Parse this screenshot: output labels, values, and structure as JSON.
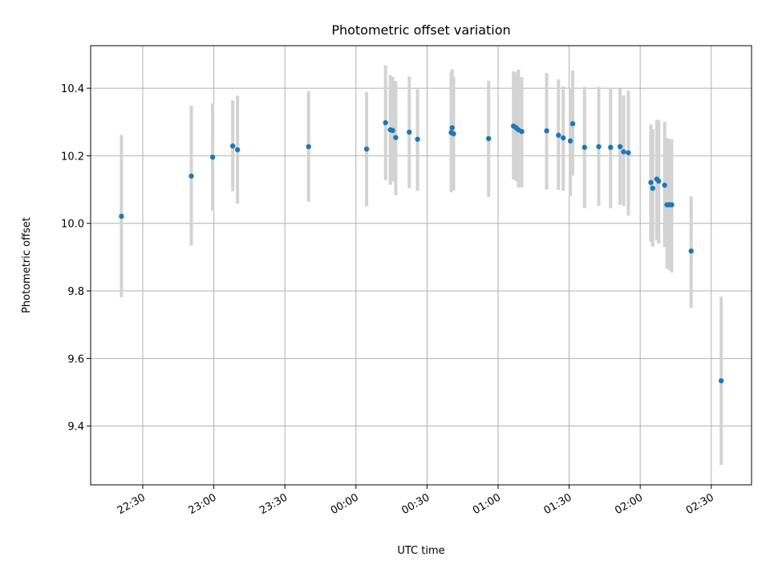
{
  "chart_data": {
    "type": "scatter",
    "title": "Photometric offset variation",
    "xlabel": "UTC time",
    "ylabel": "Photometric offset",
    "x_axis": {
      "unit": "minutes relative to 00:00 UTC",
      "min": -112,
      "max": 167,
      "ticks": [
        {
          "value": -90,
          "label": "22:30"
        },
        {
          "value": -60,
          "label": "23:00"
        },
        {
          "value": -30,
          "label": "23:30"
        },
        {
          "value": 0,
          "label": "00:00"
        },
        {
          "value": 30,
          "label": "00:30"
        },
        {
          "value": 60,
          "label": "01:00"
        },
        {
          "value": 90,
          "label": "01:30"
        },
        {
          "value": 120,
          "label": "02:00"
        },
        {
          "value": 150,
          "label": "02:30"
        }
      ]
    },
    "y_axis": {
      "min": 9.226,
      "max": 10.526,
      "ticks": [
        {
          "value": 9.4,
          "label": "9.4"
        },
        {
          "value": 9.6,
          "label": "9.6"
        },
        {
          "value": 9.8,
          "label": "9.8"
        },
        {
          "value": 10.0,
          "label": "10.0"
        },
        {
          "value": 10.2,
          "label": "10.2"
        },
        {
          "value": 10.4,
          "label": "10.4"
        }
      ]
    },
    "grid": true,
    "marker_color": "#1f77b4",
    "errorbar_color": "#d3d3d3",
    "points": [
      {
        "x": -99.0,
        "y": 10.021,
        "lo": 9.781,
        "hi": 10.262
      },
      {
        "x": -69.5,
        "y": 10.14,
        "lo": 9.934,
        "hi": 10.348
      },
      {
        "x": -60.5,
        "y": 10.196,
        "lo": 10.038,
        "hi": 10.355
      },
      {
        "x": -52.0,
        "y": 10.229,
        "lo": 10.095,
        "hi": 10.364
      },
      {
        "x": -50.0,
        "y": 10.218,
        "lo": 10.058,
        "hi": 10.378
      },
      {
        "x": -20.0,
        "y": 10.227,
        "lo": 10.064,
        "hi": 10.391
      },
      {
        "x": 4.5,
        "y": 10.22,
        "lo": 10.05,
        "hi": 10.388
      },
      {
        "x": 12.5,
        "y": 10.298,
        "lo": 10.128,
        "hi": 10.468
      },
      {
        "x": 14.5,
        "y": 10.277,
        "lo": 10.114,
        "hi": 10.439
      },
      {
        "x": 15.5,
        "y": 10.275,
        "lo": 10.124,
        "hi": 10.434
      },
      {
        "x": 16.8,
        "y": 10.254,
        "lo": 10.083,
        "hi": 10.421
      },
      {
        "x": 22.5,
        "y": 10.27,
        "lo": 10.104,
        "hi": 10.435
      },
      {
        "x": 26.0,
        "y": 10.249,
        "lo": 10.096,
        "hi": 10.397
      },
      {
        "x": 40.2,
        "y": 10.269,
        "lo": 10.092,
        "hi": 10.447
      },
      {
        "x": 40.6,
        "y": 10.283,
        "lo": 10.108,
        "hi": 10.456
      },
      {
        "x": 41.2,
        "y": 10.265,
        "lo": 10.097,
        "hi": 10.434
      },
      {
        "x": 56.0,
        "y": 10.251,
        "lo": 10.078,
        "hi": 10.422
      },
      {
        "x": 66.5,
        "y": 10.288,
        "lo": 10.13,
        "hi": 10.45
      },
      {
        "x": 67.6,
        "y": 10.283,
        "lo": 10.125,
        "hi": 10.447
      },
      {
        "x": 68.6,
        "y": 10.277,
        "lo": 10.106,
        "hi": 10.455
      },
      {
        "x": 70.0,
        "y": 10.272,
        "lo": 10.106,
        "hi": 10.433
      },
      {
        "x": 80.5,
        "y": 10.274,
        "lo": 10.1,
        "hi": 10.445
      },
      {
        "x": 85.5,
        "y": 10.261,
        "lo": 10.099,
        "hi": 10.426
      },
      {
        "x": 87.5,
        "y": 10.253,
        "lo": 10.096,
        "hi": 10.405
      },
      {
        "x": 90.5,
        "y": 10.244,
        "lo": 10.081,
        "hi": 10.401
      },
      {
        "x": 91.5,
        "y": 10.295,
        "lo": 10.141,
        "hi": 10.453
      },
      {
        "x": 96.5,
        "y": 10.225,
        "lo": 10.045,
        "hi": 10.404
      },
      {
        "x": 102.5,
        "y": 10.227,
        "lo": 10.052,
        "hi": 10.404
      },
      {
        "x": 107.5,
        "y": 10.225,
        "lo": 10.045,
        "hi": 10.398
      },
      {
        "x": 111.5,
        "y": 10.227,
        "lo": 10.055,
        "hi": 10.399
      },
      {
        "x": 113.0,
        "y": 10.212,
        "lo": 10.052,
        "hi": 10.379
      },
      {
        "x": 115.0,
        "y": 10.209,
        "lo": 10.023,
        "hi": 10.393
      },
      {
        "x": 124.5,
        "y": 10.121,
        "lo": 9.945,
        "hi": 10.293
      },
      {
        "x": 125.3,
        "y": 10.104,
        "lo": 9.931,
        "hi": 10.279
      },
      {
        "x": 127.0,
        "y": 10.131,
        "lo": 9.95,
        "hi": 10.307
      },
      {
        "x": 127.8,
        "y": 10.125,
        "lo": 9.94,
        "hi": 10.306
      },
      {
        "x": 130.3,
        "y": 10.113,
        "lo": 9.93,
        "hi": 10.301
      },
      {
        "x": 131.3,
        "y": 10.055,
        "lo": 9.866,
        "hi": 10.253
      },
      {
        "x": 132.3,
        "y": 10.055,
        "lo": 9.862,
        "hi": 10.25
      },
      {
        "x": 133.3,
        "y": 10.055,
        "lo": 9.855,
        "hi": 10.249
      },
      {
        "x": 141.5,
        "y": 9.918,
        "lo": 9.75,
        "hi": 10.08
      },
      {
        "x": 154.2,
        "y": 9.534,
        "lo": 9.285,
        "hi": 9.783
      }
    ]
  }
}
